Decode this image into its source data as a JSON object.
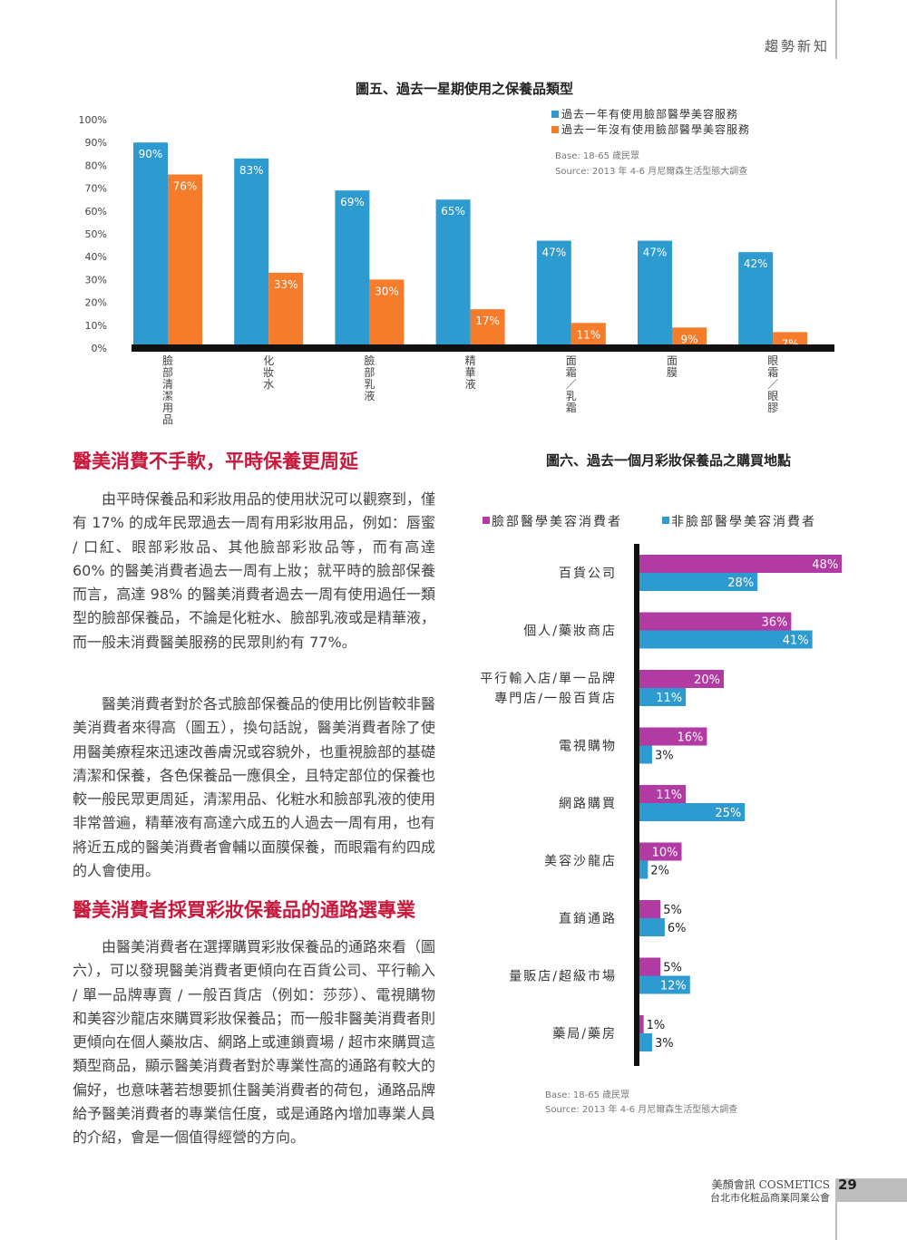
{
  "header": {
    "section": "趨勢新知"
  },
  "chart5": {
    "title": "圖五、過去一星期使用之保養品類型",
    "legend": [
      "過去一年有使用臉部醫學美容服務",
      "過去一年沒有使用臉部醫學美容服務"
    ],
    "note_base": "Base: 18-65 歲民眾",
    "note_source": "Source: 2013 年 4-6 月尼爾森生活型態大調查",
    "y_ticks": [
      "100%",
      "90%",
      "80%",
      "70%",
      "60%",
      "50%",
      "40%",
      "30%",
      "20%",
      "10%",
      "0%"
    ]
  },
  "chart6": {
    "title": "圖六、過去一個月彩妝保養品之購買地點",
    "legend": [
      "臉部醫學美容消費者",
      "非臉部醫學美容消費者"
    ],
    "note_base": "Base: 18-65 歲民眾",
    "note_source": "Source: 2013 年 4-6 月尼爾森生活型態大調查"
  },
  "chart_data": [
    {
      "type": "bar",
      "title": "圖五、過去一星期使用之保養品類型",
      "categories": [
        "臉部清潔用品",
        "化妝水",
        "臉部乳液",
        "精華液",
        "面霜／乳霜",
        "面膜",
        "眼霜／眼膠"
      ],
      "series": [
        {
          "name": "過去一年有使用臉部醫學美容服務",
          "values": [
            90,
            83,
            69,
            65,
            47,
            47,
            42
          ],
          "labels": [
            "90%",
            "83%",
            "69%",
            "65%",
            "47%",
            "47%",
            "42%"
          ]
        },
        {
          "name": "過去一年沒有使用臉部醫學美容服務",
          "values": [
            76,
            33,
            30,
            17,
            11,
            9,
            7
          ],
          "labels": [
            "76%",
            "33%",
            "30%",
            "17%",
            "11%",
            "9%",
            "7%"
          ]
        }
      ],
      "ylim": [
        0,
        100
      ],
      "colors": [
        "#2e9bd0",
        "#f47c2b"
      ],
      "legend_position": "top-right"
    },
    {
      "type": "bar",
      "orientation": "horizontal",
      "title": "圖六、過去一個月彩妝保養品之購買地點",
      "categories": [
        [
          "百貨公司"
        ],
        [
          "個人/藥妝商店"
        ],
        [
          "平行輸入店/單一品牌",
          "專門店/一般百貨店"
        ],
        [
          "電視購物"
        ],
        [
          "網路購買"
        ],
        [
          "美容沙龍店"
        ],
        [
          "直銷通路"
        ],
        [
          "量販店/超級市場"
        ],
        [
          "藥局/藥房"
        ]
      ],
      "series": [
        {
          "name": "臉部醫學美容消費者",
          "values": [
            48,
            36,
            20,
            16,
            11,
            10,
            5,
            5,
            1
          ],
          "labels": [
            "48%",
            "36%",
            "20%",
            "16%",
            "11%",
            "10%",
            "5%",
            "5%",
            "1%"
          ]
        },
        {
          "name": "非臉部醫學美容消費者",
          "values": [
            28,
            41,
            11,
            3,
            25,
            2,
            6,
            12,
            3
          ],
          "labels": [
            "28%",
            "41%",
            "11%",
            "3%",
            "25%",
            "2%",
            "6%",
            "12%",
            "3%"
          ]
        }
      ],
      "colors": [
        "#b13aa3",
        "#2e9bd0"
      ],
      "legend_position": "top"
    }
  ],
  "article": {
    "heading1": "醫美消費不手軟，平時保養更周延",
    "para1": "由平時保養品和彩妝用品的使用狀況可以觀察到，僅有 17% 的成年民眾過去一周有用彩妝用品，例如：唇蜜 / 口紅、眼部彩妝品、其他臉部彩妝品等，而有高達 60% 的醫美消費者過去一周有上妝；就平時的臉部保養而言，高達 98% 的醫美消費者過去一周有使用過任一類型的臉部保養品，不論是化粧水、臉部乳液或是精華液，而一般未消費醫美服務的民眾則約有 77%。",
    "para2": "醫美消費者對於各式臉部保養品的使用比例皆較非醫美消費者來得高（圖五），換句話說，醫美消費者除了使用醫美療程來迅速改善膚況或容貌外，也重視臉部的基礎清潔和保養，各色保養品一應俱全，且特定部位的保養也較一般民眾更周延，清潔用品、化粧水和臉部乳液的使用非常普遍，精華液有高達六成五的人過去一周有用，也有將近五成的醫美消費者會輔以面膜保養，而眼霜有約四成的人會使用。",
    "heading2": "醫美消費者採買彩妝保養品的通路選專業",
    "para3": "由醫美消費者在選擇購買彩妝保養品的通路來看（圖六），可以發現醫美消費者更傾向在百貨公司、平行輸入 / 單一品牌專賣 / 一般百貨店（例如：莎莎）、電視購物和美容沙龍店來購買彩妝保養品；而一般非醫美消費者則更傾向在個人藥妝店、網路上或連鎖賣場 / 超市來購買這類型商品，顯示醫美消費者對於專業性高的通路有較大的偏好，也意味著若想要抓住醫美消費者的荷包，通路品牌給予醫美消費者的專業信任度，或是通路內增加專業人員的介紹，會是一個值得經營的方向。"
  },
  "footer": {
    "brand": "美顏會訊 COSMETICS",
    "org": "台北市化粧品商業同業公會",
    "page": "29"
  }
}
